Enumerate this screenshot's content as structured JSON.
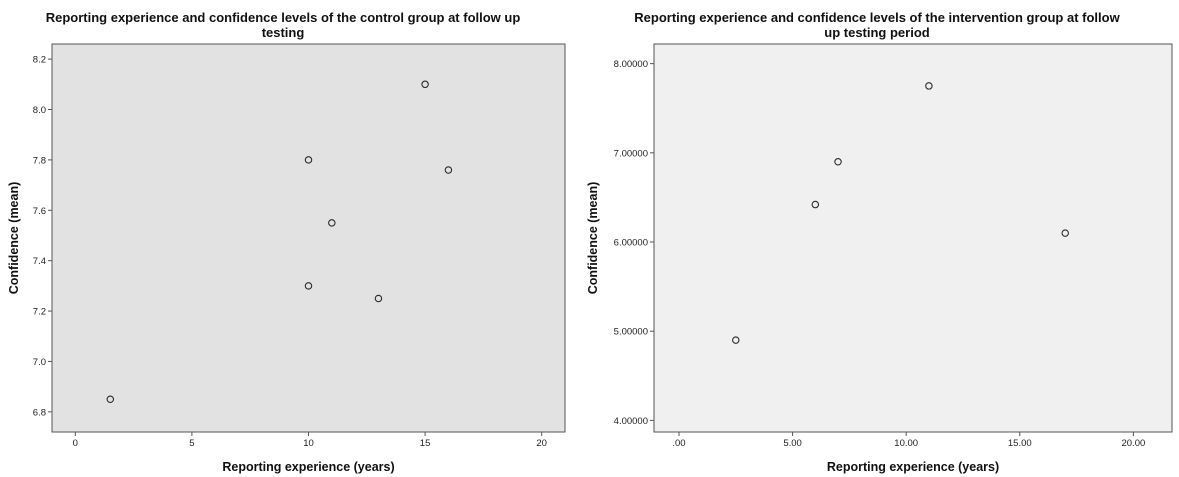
{
  "chart_data": [
    {
      "type": "scatter",
      "title": "Reporting experience and confidence levels of the control group at follow up testing",
      "title_lines": [
        "Reporting experience and confidence levels of the control group at follow up",
        "testing"
      ],
      "xlabel": "Reporting experience (years)",
      "ylabel": "Confidence (mean)",
      "xlim": [
        -1,
        21
      ],
      "ylim": [
        6.72,
        8.26
      ],
      "x_ticks": [
        0,
        5,
        10,
        15,
        20
      ],
      "x_tick_labels": [
        "0",
        "5",
        "10",
        "15",
        "20"
      ],
      "y_ticks": [
        6.8,
        7.0,
        7.2,
        7.4,
        7.6,
        7.8,
        8.0,
        8.2
      ],
      "y_tick_labels": [
        "6.8",
        "7.0",
        "7.2",
        "7.4",
        "7.6",
        "7.8",
        "8.0",
        "8.2"
      ],
      "background": "#e2e2e2",
      "grid": false,
      "points": [
        {
          "x": 1.5,
          "y": 6.85
        },
        {
          "x": 10,
          "y": 7.3
        },
        {
          "x": 10,
          "y": 7.8
        },
        {
          "x": 11,
          "y": 7.55
        },
        {
          "x": 13,
          "y": 7.25
        },
        {
          "x": 15,
          "y": 8.1
        },
        {
          "x": 16,
          "y": 7.76
        }
      ]
    },
    {
      "type": "scatter",
      "title": "Reporting experience and confidence levels of the intervention group at follow up testing period",
      "title_lines": [
        "Reporting experience and confidence levels of the intervention group at follow",
        "up testing period"
      ],
      "xlabel": "Reporting experience (years)",
      "ylabel": "Confidence (mean)",
      "xlim": [
        -1.1,
        21.7
      ],
      "ylim": [
        3.87,
        8.22
      ],
      "x_ticks": [
        0,
        5,
        10,
        15,
        20
      ],
      "x_tick_labels": [
        ".00",
        "5.00",
        "10.00",
        "15.00",
        "20.00"
      ],
      "y_ticks": [
        4,
        5,
        6,
        7,
        8
      ],
      "y_tick_labels": [
        "4.00000",
        "5.00000",
        "6.00000",
        "7.00000",
        "8.00000"
      ],
      "background": "#f0f0f0",
      "grid": false,
      "points": [
        {
          "x": 2.5,
          "y": 4.9
        },
        {
          "x": 6,
          "y": 6.42
        },
        {
          "x": 7,
          "y": 6.9
        },
        {
          "x": 11,
          "y": 7.75
        },
        {
          "x": 17,
          "y": 6.1
        }
      ]
    }
  ]
}
